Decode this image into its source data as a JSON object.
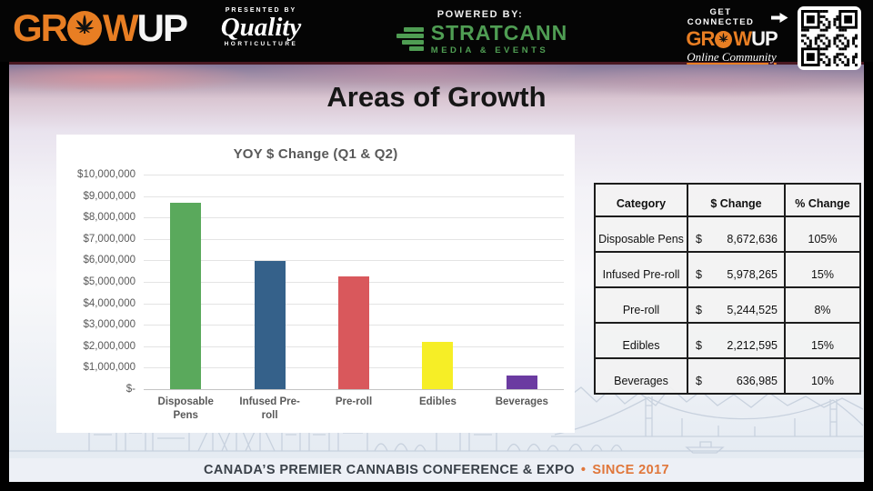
{
  "header": {
    "growup": {
      "gr": "GR",
      "w": "W",
      "up": "UP"
    },
    "presented_by": "PRESENTED BY",
    "quality_name": "Quality",
    "quality_sub": "HORTICULTURE",
    "powered_by": "POWERED BY:",
    "stratcann_name": "STRATCANN",
    "stratcann_sub": "MEDIA & EVENTS",
    "get_connected": "GET CONNECTED",
    "online_community": "Online Community"
  },
  "slide": {
    "title": "Areas of Growth"
  },
  "chart_data": {
    "type": "bar",
    "title": "YOY $ Change (Q1 & Q2)",
    "categories": [
      "Disposable Pens",
      "Infused Pre-roll",
      "Pre-roll",
      "Edibles",
      "Beverages"
    ],
    "values": [
      8672636,
      5978265,
      5244525,
      2212595,
      636985
    ],
    "bar_colors": [
      "#5aa95c",
      "#35618a",
      "#d9585c",
      "#f6ee26",
      "#6b3ba1"
    ],
    "xlabel": "",
    "ylabel": "",
    "ylim": [
      0,
      10000000
    ],
    "ytick_step": 1000000,
    "ytick_labels": [
      "$-",
      "$1,000,000",
      "$2,000,000",
      "$3,000,000",
      "$4,000,000",
      "$5,000,000",
      "$6,000,000",
      "$7,000,000",
      "$8,000,000",
      "$9,000,000",
      "$10,000,000"
    ],
    "grid": true,
    "legend": false
  },
  "table": {
    "headers": [
      "Category",
      "$ Change",
      "% Change"
    ],
    "currency_symbol": "$",
    "rows": [
      {
        "category": "Disposable Pens",
        "dollar": "8,672,636",
        "percent": "105%"
      },
      {
        "category": "Infused Pre-roll",
        "dollar": "5,978,265",
        "percent": "15%"
      },
      {
        "category": "Pre-roll",
        "dollar": "5,244,525",
        "percent": "8%"
      },
      {
        "category": "Edibles",
        "dollar": "2,212,595",
        "percent": "15%"
      },
      {
        "category": "Beverages",
        "dollar": "636,985",
        "percent": "10%"
      }
    ]
  },
  "footer": {
    "text": "CANADA’S PREMIER CANNABIS CONFERENCE & EXPO",
    "bullet": "•",
    "since": "SINCE 2017"
  },
  "colors": {
    "brand_orange": "#e87e23",
    "footer_orange": "#e0763a",
    "stratcann_green": "#4f9d53",
    "chart_text_gray": "#595959"
  }
}
